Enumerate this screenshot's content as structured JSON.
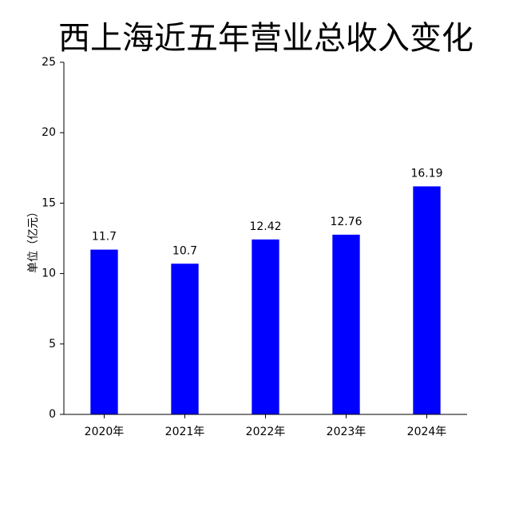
{
  "chart_data": {
    "type": "bar",
    "title": "西上海近五年营业总收入变化",
    "ylabel": "单位（亿元）",
    "categories": [
      "2020年",
      "2021年",
      "2022年",
      "2023年",
      "2024年"
    ],
    "values": [
      11.7,
      10.7,
      12.42,
      12.76,
      16.19
    ],
    "color": "#0000ff",
    "ylim": [
      0,
      25
    ],
    "yticks": [
      0,
      5,
      10,
      15,
      20,
      25
    ],
    "grid": false
  }
}
